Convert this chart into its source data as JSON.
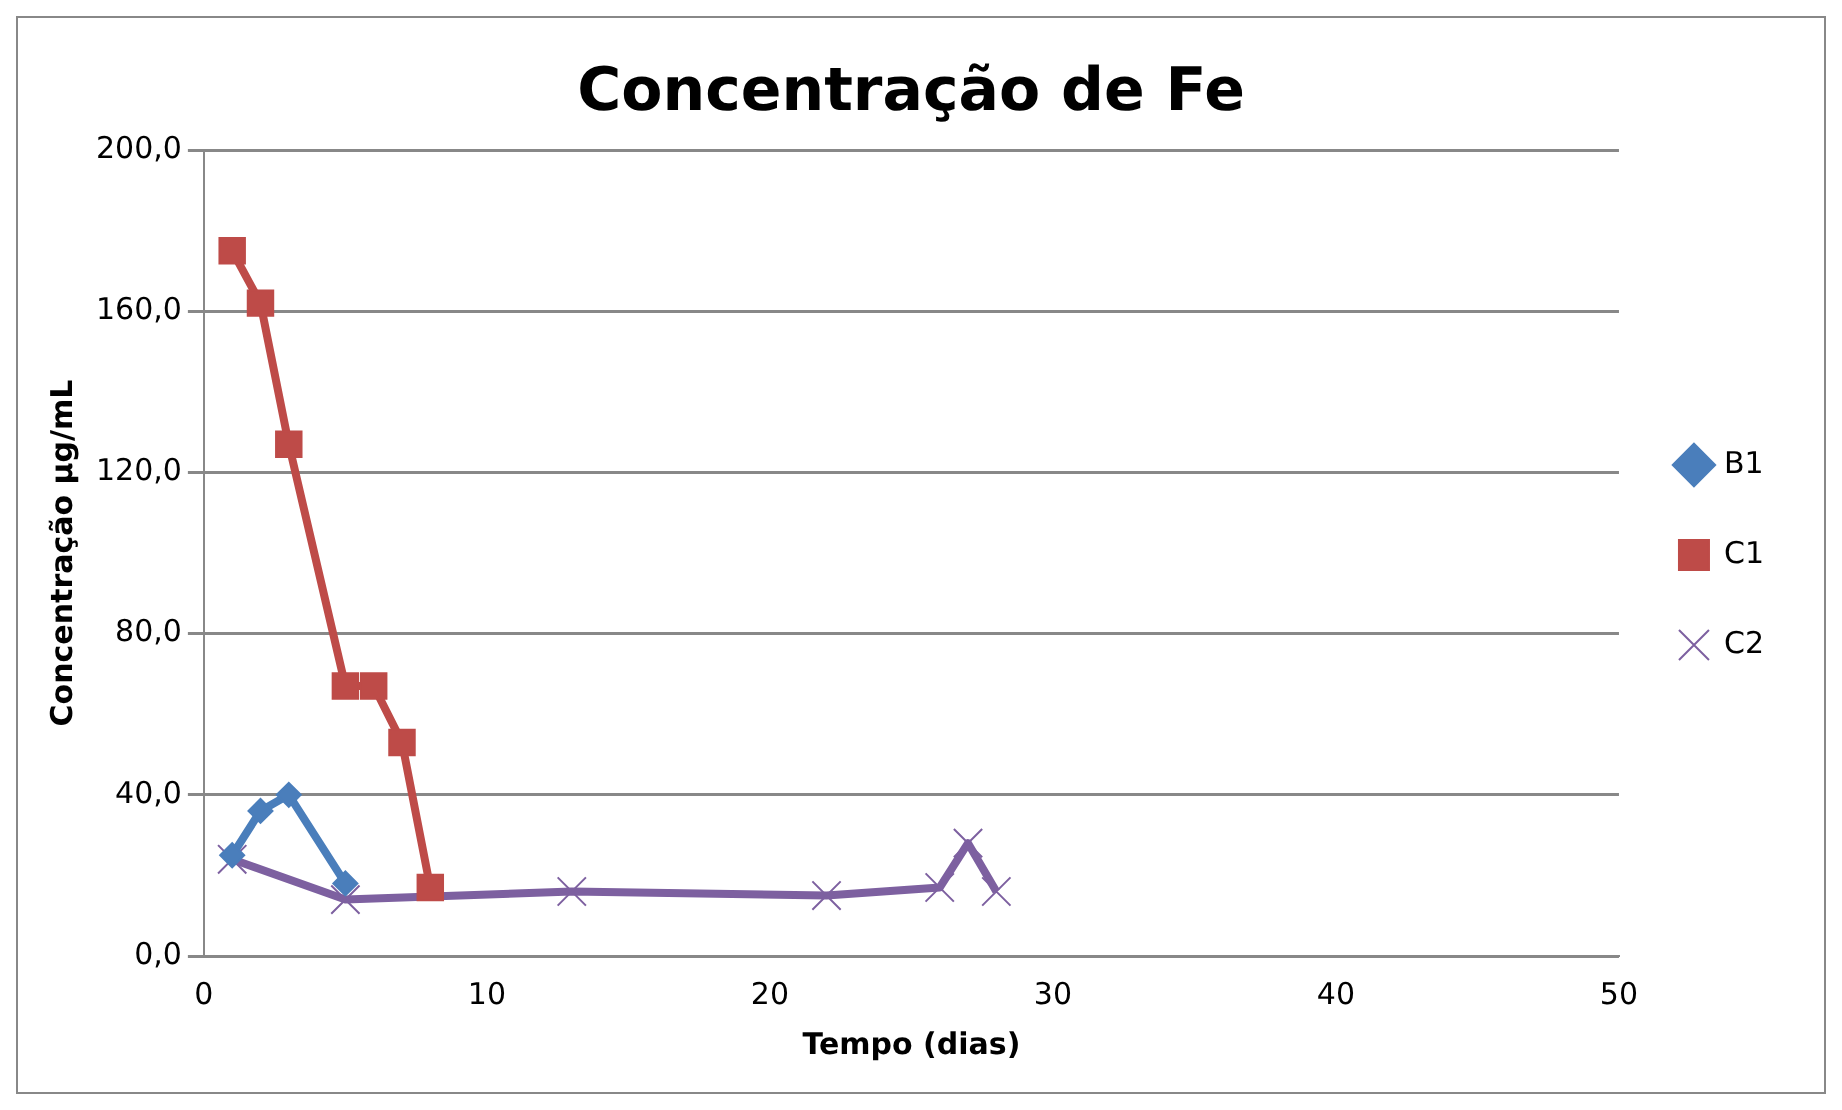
{
  "chart_data": {
    "type": "line",
    "title": "Concentração de Fe",
    "xlabel": "Tempo (dias)",
    "ylabel": "Concentração µg/mL",
    "series": [
      {
        "name": "B1",
        "color": "#4a7ebb",
        "marker": "diamond",
        "x": [
          1,
          2,
          3,
          5
        ],
        "values": [
          25,
          36,
          40,
          18
        ]
      },
      {
        "name": "C1",
        "color": "#be4b48",
        "marker": "square",
        "x": [
          1,
          2,
          3,
          5,
          6,
          7,
          8
        ],
        "values": [
          175,
          162,
          127,
          67,
          67,
          53,
          17
        ]
      },
      {
        "name": "C2",
        "color": "#7d60a0",
        "marker": "cross",
        "x": [
          1,
          5,
          13,
          22,
          26,
          27,
          28
        ],
        "values": [
          24,
          14,
          16,
          15,
          17,
          28,
          16
        ]
      }
    ],
    "xlim": [
      0,
      50
    ],
    "xticks": [
      0,
      10,
      20,
      30,
      40,
      50
    ],
    "ylim": [
      0,
      200
    ],
    "yticks": [
      {
        "value": 0,
        "label": "0,0"
      },
      {
        "value": 40,
        "label": "40,0"
      },
      {
        "value": 80,
        "label": "80,0"
      },
      {
        "value": 120,
        "label": "120,0"
      },
      {
        "value": 160,
        "label": "160,0"
      },
      {
        "value": 200,
        "label": "200,0"
      }
    ],
    "grid": "y",
    "legend": "right",
    "line_style": "solid"
  }
}
